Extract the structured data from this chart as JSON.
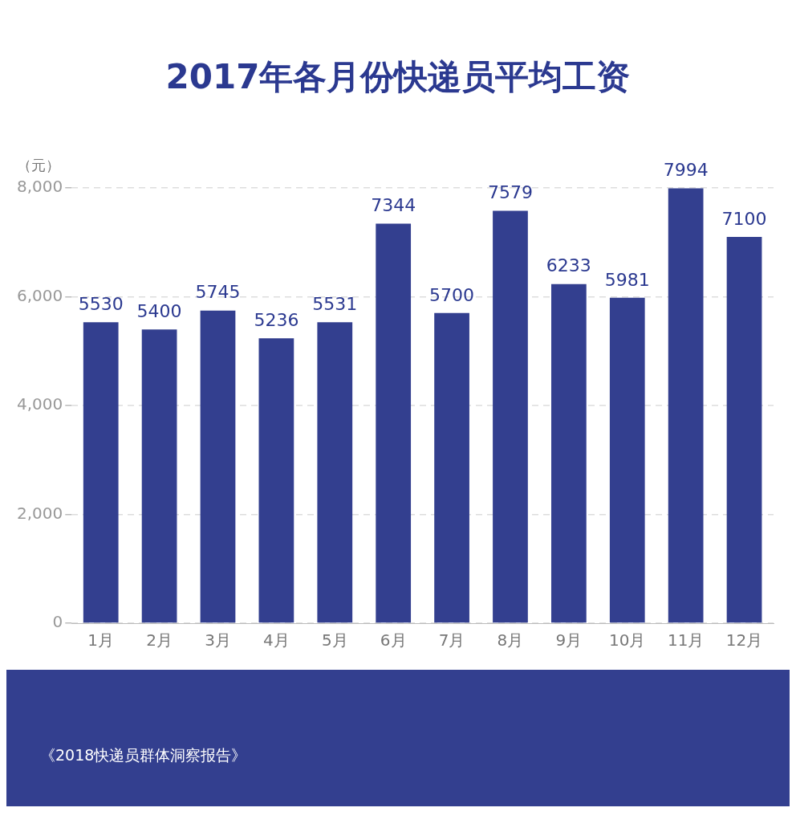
{
  "chart_data": {
    "type": "bar",
    "title": "2017年各月份快递员平均工资",
    "ylabel": "（元）",
    "categories": [
      "1月",
      "2月",
      "3月",
      "4月",
      "5月",
      "6月",
      "7月",
      "8月",
      "9月",
      "10月",
      "11月",
      "12月"
    ],
    "values": [
      5530,
      5400,
      5745,
      5236,
      5531,
      7344,
      5700,
      7579,
      6233,
      5981,
      7994,
      7100
    ],
    "color": "#333f8f",
    "ylim": [
      0,
      8000
    ],
    "yticks": [
      0,
      {
        "value": 2000,
        "label": "2,000"
      },
      {
        "value": 4000,
        "label": "4,000"
      },
      {
        "value": 6000,
        "label": "6,000"
      },
      {
        "value": 8000,
        "label": "8,000"
      }
    ],
    "grid": "y",
    "data_labels": true,
    "annotations": [
      "《2018快递员群体洞察报告》"
    ]
  }
}
